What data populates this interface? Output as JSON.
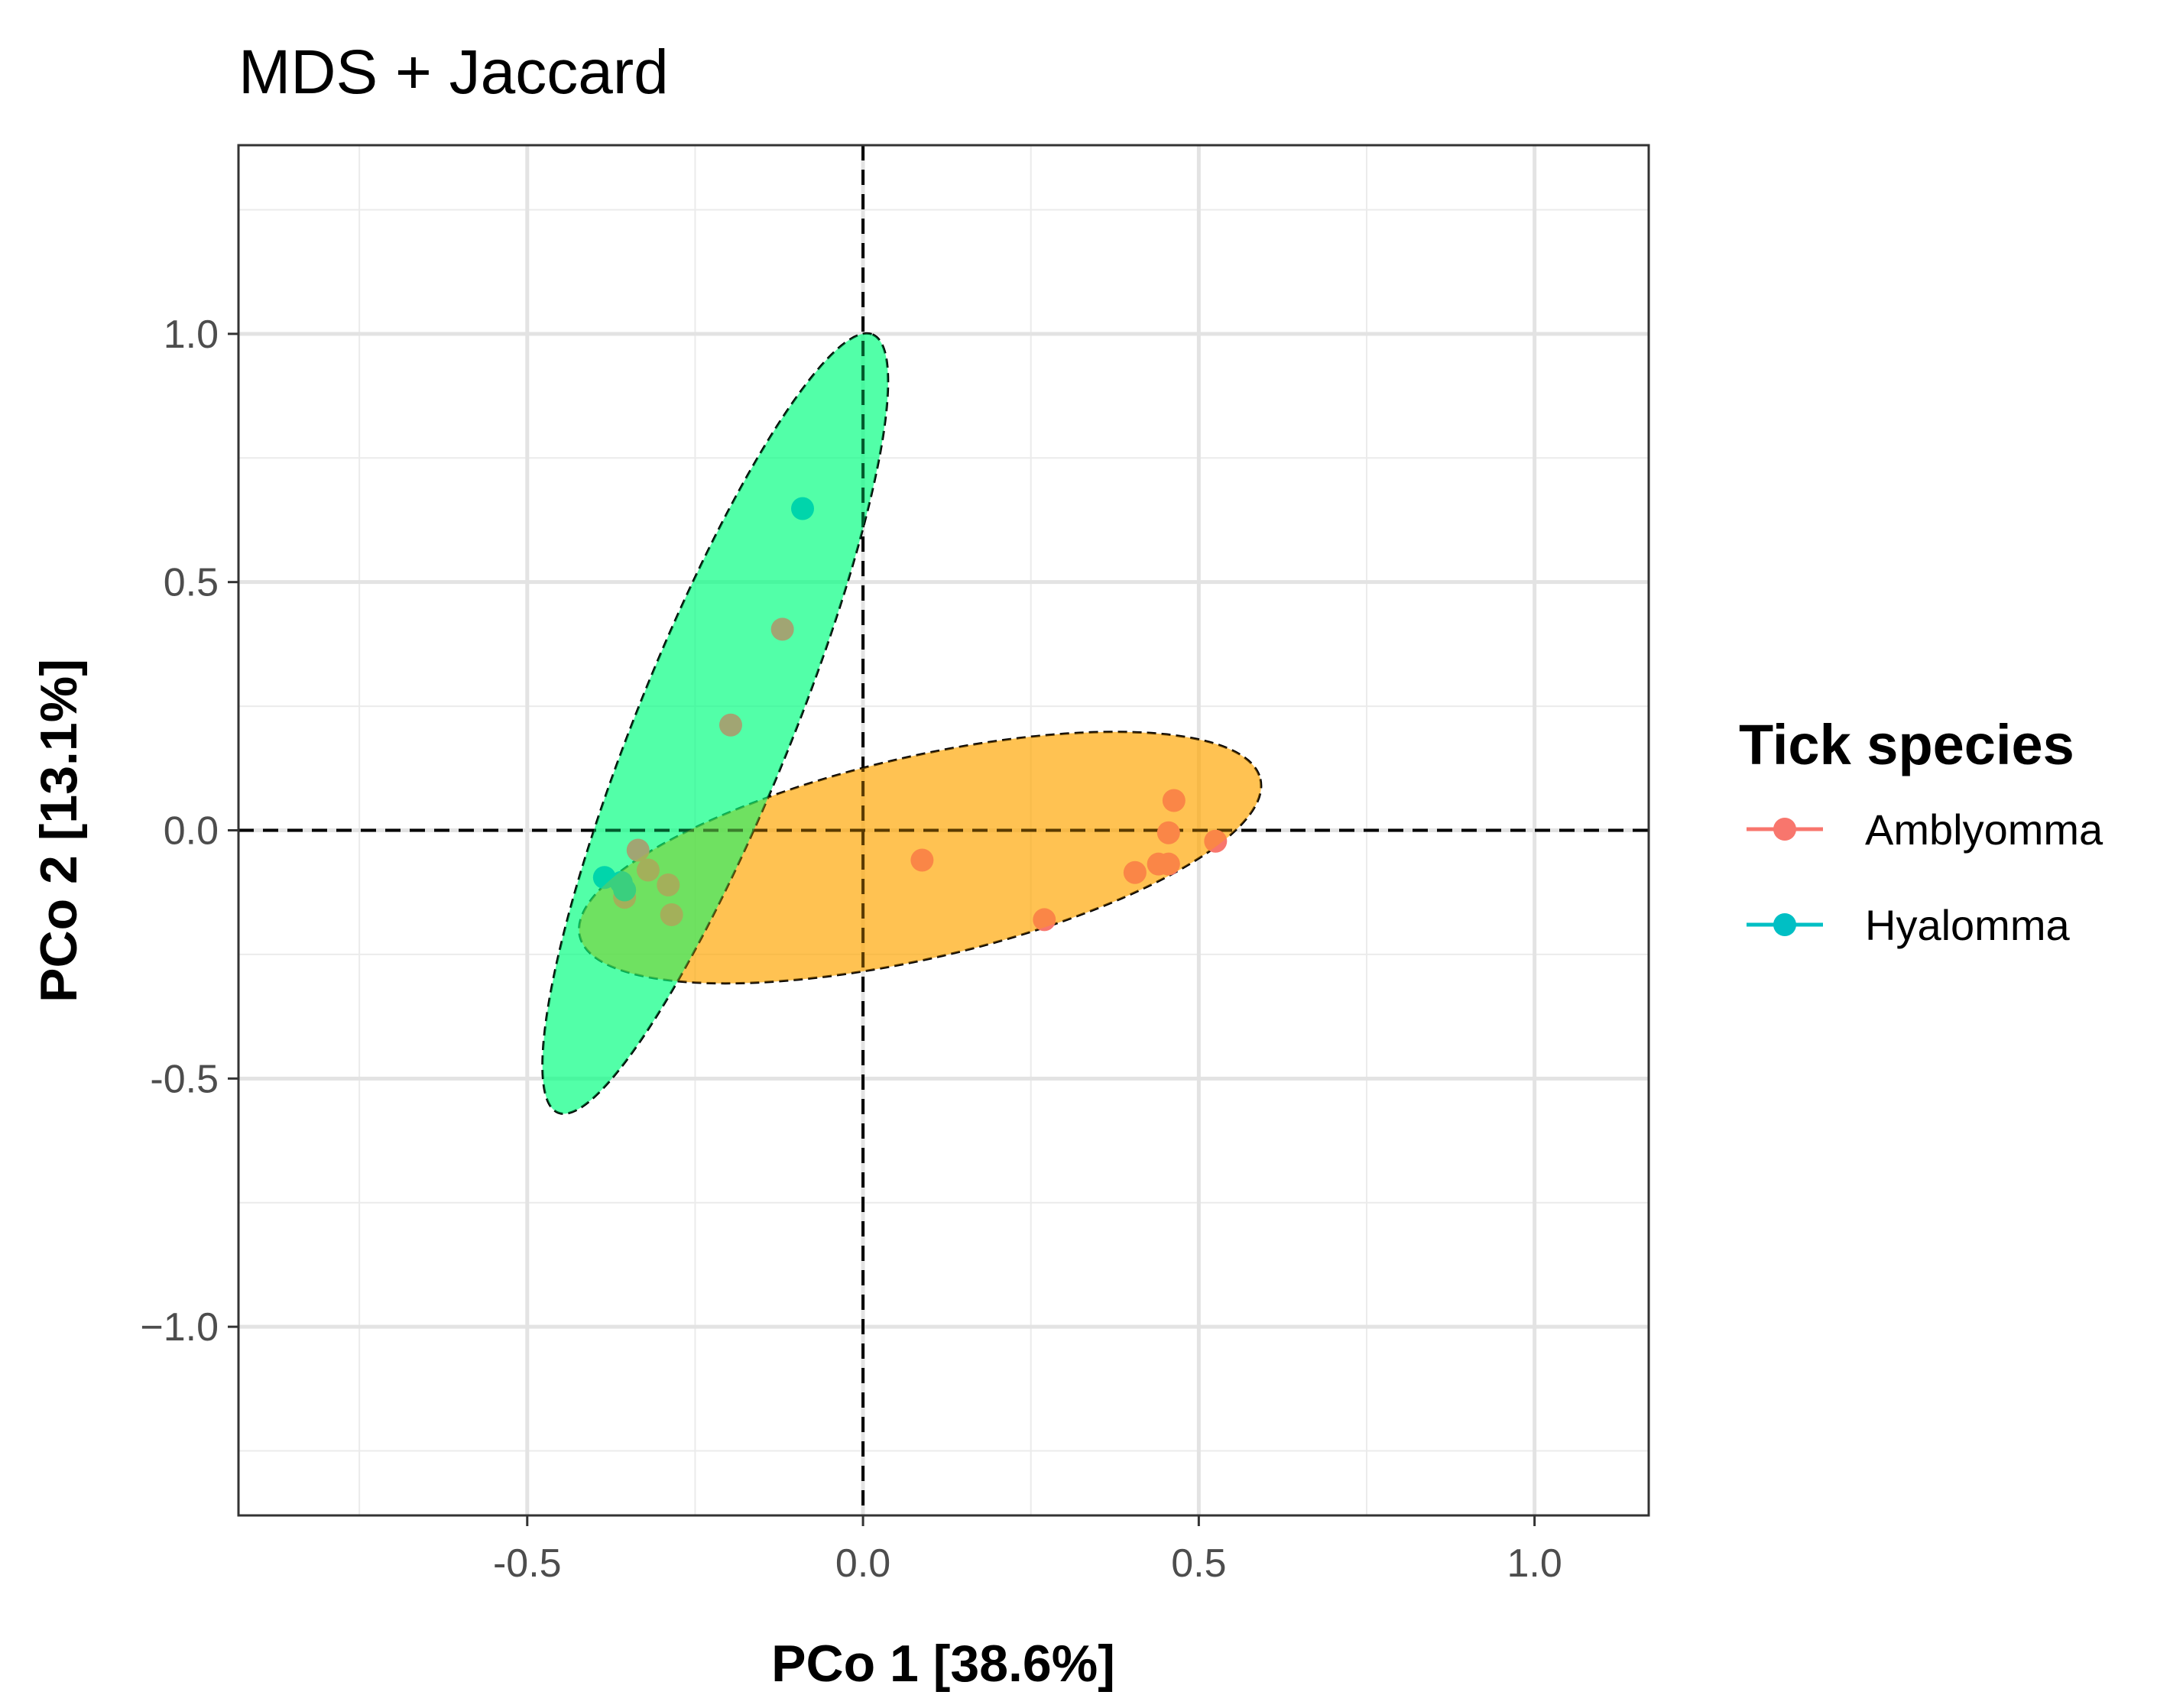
{
  "chart_data": {
    "type": "scatter",
    "title": "MDS + Jaccard",
    "xlabel": "PCo 1 [38.6%]",
    "ylabel": "PCo 2 [13.1%]",
    "xlim": [
      -0.93,
      1.17
    ],
    "ylim": [
      -1.38,
      1.38
    ],
    "x_ticks": [
      -0.5,
      0.0,
      0.5,
      1.0
    ],
    "x_tick_labels": [
      "-0.5",
      "0.0",
      "0.5",
      "1.0"
    ],
    "y_ticks": [
      1.0,
      0.5,
      0.0,
      -0.5,
      -1.0
    ],
    "y_tick_labels": [
      "1.0",
      "0.5",
      "0.0",
      "-0.5",
      "−1.0"
    ],
    "minor_x": [
      -0.75,
      -0.25,
      0.25,
      0.75
    ],
    "minor_y": [
      1.25,
      0.75,
      0.25,
      -0.25,
      -0.75,
      -1.25
    ],
    "reference_lines": {
      "x": 0.0,
      "y": 0.0
    },
    "grid": true,
    "legend": {
      "title": "Tick species",
      "position": "right",
      "entries": [
        "Amblyomma",
        "Hyalomma"
      ]
    },
    "series": [
      {
        "name": "Amblyomma",
        "color": "#F8766D",
        "ellipse_fill": "#FFA500",
        "ellipse": {
          "cx": 0.085,
          "cy": -0.055,
          "rx": 0.52,
          "ry": 0.15,
          "angle_deg": 13
        },
        "points": [
          {
            "x": -0.335,
            "y": -0.04
          },
          {
            "x": -0.32,
            "y": -0.08
          },
          {
            "x": -0.29,
            "y": -0.11
          },
          {
            "x": -0.285,
            "y": -0.17
          },
          {
            "x": -0.355,
            "y": -0.135
          },
          {
            "x": 0.088,
            "y": -0.06
          },
          {
            "x": 0.27,
            "y": -0.18
          },
          {
            "x": 0.405,
            "y": -0.085
          },
          {
            "x": 0.44,
            "y": -0.068
          },
          {
            "x": 0.455,
            "y": -0.068
          },
          {
            "x": 0.455,
            "y": -0.005
          },
          {
            "x": 0.463,
            "y": 0.06
          },
          {
            "x": 0.525,
            "y": -0.022
          },
          {
            "x": -0.12,
            "y": 0.405
          },
          {
            "x": -0.197,
            "y": 0.212
          }
        ]
      },
      {
        "name": "Hyalomma",
        "color": "#00BFC4",
        "ellipse_fill": "#00FF7F",
        "ellipse": {
          "cx": -0.22,
          "cy": 0.215,
          "rx": 0.625,
          "ry": 0.115,
          "angle_deg": 68
        },
        "points": [
          {
            "x": -0.09,
            "y": 0.648
          },
          {
            "x": -0.385,
            "y": -0.095
          },
          {
            "x": -0.36,
            "y": -0.105
          },
          {
            "x": -0.355,
            "y": -0.12
          }
        ]
      }
    ]
  }
}
